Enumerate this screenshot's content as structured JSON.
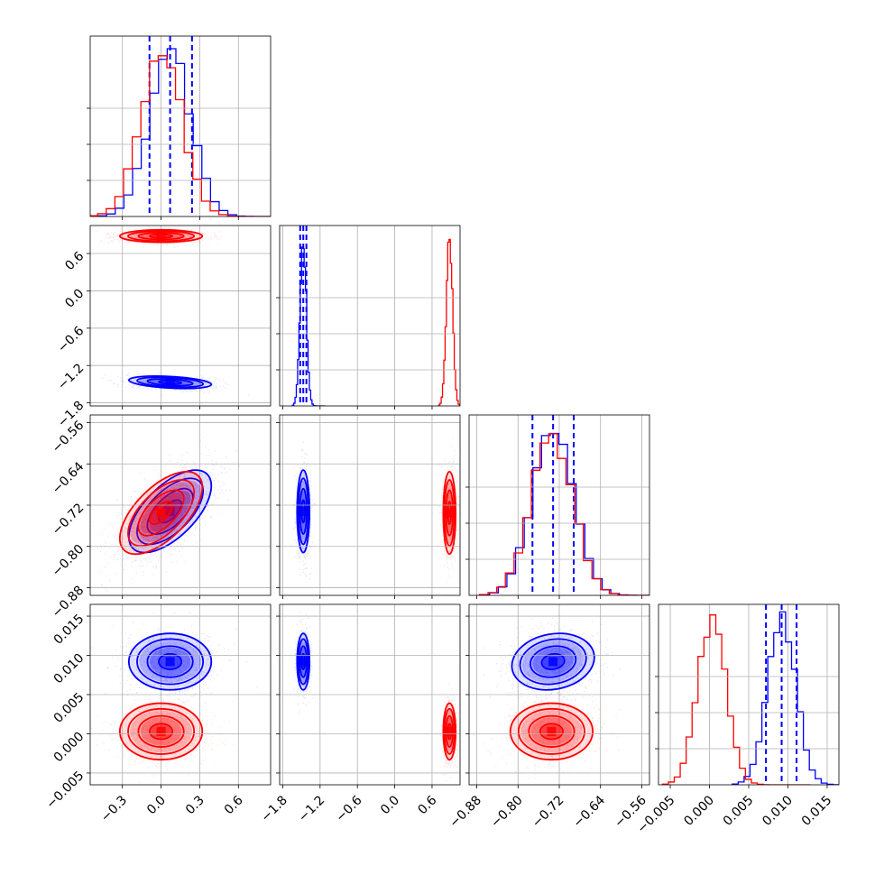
{
  "chart_data": {
    "type": "corner",
    "grid": true,
    "quantile_line_style": "dashed",
    "colors": {
      "series_a": "#0000ff",
      "series_b": "#ff0000"
    },
    "params": [
      {
        "range": [
          -0.55,
          0.85
        ],
        "ticks": [
          -0.3,
          0.0,
          0.3,
          0.6
        ],
        "tick_labels": [
          "−0.3",
          "0.0",
          "0.3",
          "0.6"
        ]
      },
      {
        "range": [
          -1.85,
          1.05
        ],
        "ticks": [
          -1.8,
          -1.2,
          -0.6,
          0.0,
          0.6
        ],
        "tick_labels": [
          "−1.8",
          "−1.2",
          "−0.6",
          "0.0",
          "0.6"
        ]
      },
      {
        "range": [
          -0.895,
          -0.545
        ],
        "ticks": [
          -0.88,
          -0.8,
          -0.72,
          -0.64,
          -0.56
        ],
        "tick_labels": [
          "−0.88",
          "−0.80",
          "−0.72",
          "−0.64",
          "−0.56"
        ]
      },
      {
        "range": [
          -0.0065,
          0.0165
        ],
        "ticks": [
          -0.005,
          0.0,
          0.005,
          0.01,
          0.015
        ],
        "tick_labels": [
          "−0.005",
          "0.000",
          "0.005",
          "0.010",
          "0.015"
        ]
      }
    ],
    "series": [
      {
        "color": "#0000ff",
        "means": [
          0.07,
          -1.47,
          -0.732,
          0.0092
        ],
        "sds": [
          0.16,
          0.05,
          0.04,
          0.0018
        ],
        "correlations": {
          "0-1": -0.35,
          "0-2": 0.62,
          "0-3": 0.0,
          "1-2": 0.0,
          "1-3": 0.0,
          "2-3": 0.15
        },
        "quantiles": [
          [
            -0.09,
            0.07,
            0.24
          ],
          [
            -1.52,
            -1.47,
            -1.42
          ],
          [
            -0.772,
            -0.732,
            -0.692
          ],
          [
            0.0072,
            0.0092,
            0.0111
          ]
        ]
      },
      {
        "color": "#ff0000",
        "means": [
          0.0,
          0.88,
          -0.735,
          0.0003
        ],
        "sds": [
          0.16,
          0.05,
          0.04,
          0.0018
        ],
        "correlations": {
          "0-1": 0.0,
          "0-2": 0.62,
          "0-3": 0.0,
          "1-2": 0.0,
          "1-3": 0.0,
          "2-3": 0.0
        },
        "quantiles": null
      }
    ]
  }
}
